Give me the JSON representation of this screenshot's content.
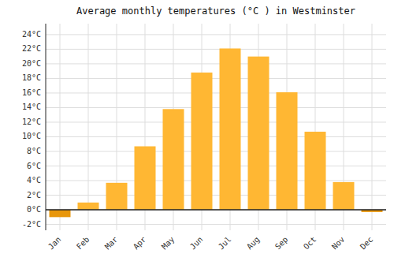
{
  "chart_data": {
    "type": "bar",
    "title": "Average monthly temperatures (°C ) in Westminster",
    "categories": [
      "Jan",
      "Feb",
      "Mar",
      "Apr",
      "May",
      "Jun",
      "Jul",
      "Aug",
      "Sep",
      "Oct",
      "Nov",
      "Dec"
    ],
    "values": [
      -1.0,
      1.0,
      3.7,
      8.7,
      13.8,
      18.8,
      22.1,
      21.0,
      16.1,
      10.7,
      3.8,
      -0.3
    ],
    "colors": [
      "#E8960A",
      "#FFB733",
      "#FFB733",
      "#FFB733",
      "#FFB733",
      "#FFB733",
      "#FFB733",
      "#FFB733",
      "#FFB733",
      "#FFB733",
      "#FFB733",
      "#E8960A"
    ],
    "ylim": [
      -2.8,
      25.5
    ],
    "yticks": [
      {
        "value": -2,
        "label": "-2°C"
      },
      {
        "value": 0,
        "label": "0°C"
      },
      {
        "value": 2,
        "label": "2°C"
      },
      {
        "value": 4,
        "label": "4°C"
      },
      {
        "value": 6,
        "label": "6°C"
      },
      {
        "value": 8,
        "label": "8°C"
      },
      {
        "value": 10,
        "label": "10°C"
      },
      {
        "value": 12,
        "label": "12°C"
      },
      {
        "value": 14,
        "label": "14°C"
      },
      {
        "value": 16,
        "label": "16°C"
      },
      {
        "value": 18,
        "label": "18°C"
      },
      {
        "value": 20,
        "label": "20°C"
      },
      {
        "value": 22,
        "label": "22°C"
      },
      {
        "value": 24,
        "label": "24°C"
      }
    ],
    "grid": true
  }
}
